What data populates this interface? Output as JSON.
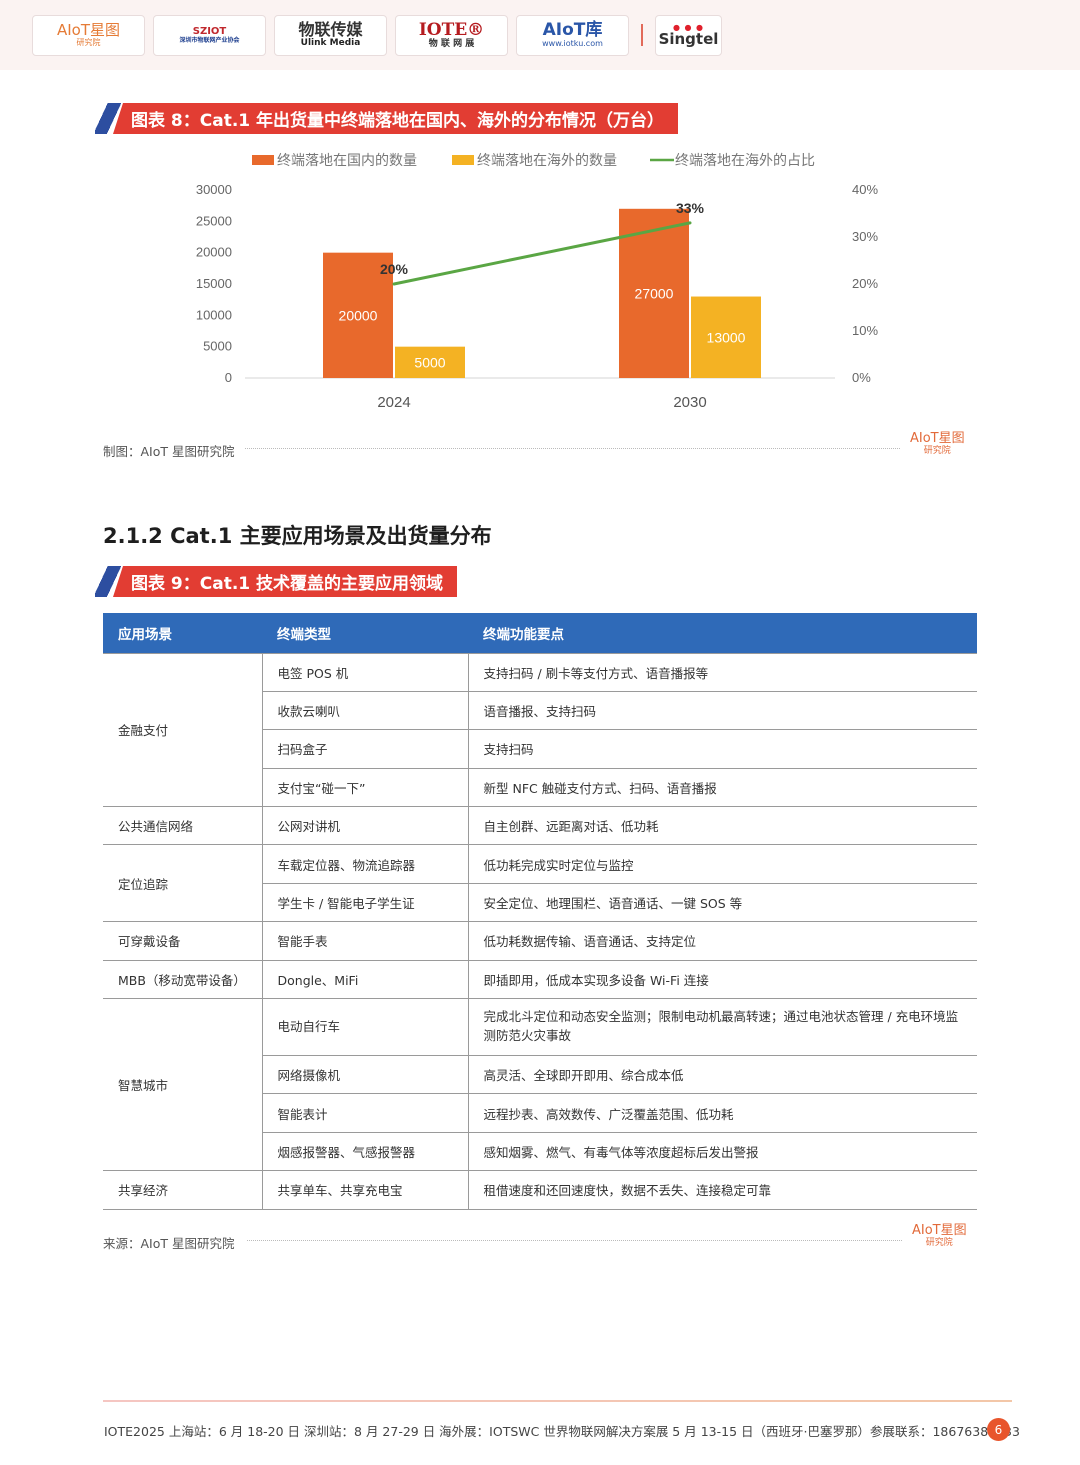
{
  "header": {
    "logos": [
      {
        "main": "AIoT星图",
        "sub": "研究院",
        "color": "#e57b36"
      },
      {
        "main": "SZIOT",
        "sub": "深圳市物联网产业协会",
        "color": "#c0282d"
      },
      {
        "main": "物联传媒",
        "sub": "Ulink Media",
        "color": "#222222"
      },
      {
        "main": "IOTE®",
        "sub": "物 联 网 展",
        "color": "#b51b1f"
      },
      {
        "main": "AIoT库",
        "sub": "www.iotku.com",
        "color": "#2a56a8"
      },
      {
        "main": "Singtel",
        "sub": "",
        "color": "#333333"
      }
    ]
  },
  "figure8": {
    "banner": "图表 8：Cat.1 年出货量中终端落地在国内、海外的分布情况（万台）",
    "source": "制图：AIoT 星图研究院",
    "logo_main": "AIoT星图",
    "logo_sub": "研究院"
  },
  "section": {
    "title": "2.1.2 Cat.1 主要应用场景及出货量分布"
  },
  "figure9": {
    "banner": "图表 9：Cat.1 技术覆盖的主要应用领域",
    "headers": [
      "应用场景",
      "终端类型",
      "终端功能要点"
    ],
    "rows": [
      {
        "scene": "金融支付",
        "span": 4,
        "type": "电签 POS 机",
        "feature": "支持扫码 / 刷卡等支付方式、语音播报等"
      },
      {
        "type": "收款云喇叭",
        "feature": "语音播报、支持扫码"
      },
      {
        "type": "扫码盒子",
        "feature": "支持扫码"
      },
      {
        "type": "支付宝“碰一下”",
        "feature": "新型 NFC 触碰支付方式、扫码、语音播报"
      },
      {
        "scene": "公共通信网络",
        "span": 1,
        "type": "公网对讲机",
        "feature": "自主创群、远距离对话、低功耗"
      },
      {
        "scene": "定位追踪",
        "span": 2,
        "type": "车载定位器、物流追踪器",
        "feature": "低功耗完成实时定位与监控"
      },
      {
        "type": "学生卡 / 智能电子学生证",
        "feature": "安全定位、地理围栏、语音通话、一键 SOS 等"
      },
      {
        "scene": "可穿戴设备",
        "span": 1,
        "type": "智能手表",
        "feature": "低功耗数据传输、语音通话、支持定位"
      },
      {
        "scene": "MBB（移动宽带设备）",
        "span": 1,
        "type": "Dongle、MiFi",
        "feature": "即插即用，低成本实现多设备 Wi-Fi 连接"
      },
      {
        "scene": "智慧城市",
        "span": 4,
        "type": "电动自行车",
        "feature": "完成北斗定位和动态安全监测；限制电动机最高转速；通过电池状态管理 / 充电环境监测防范火灾事故",
        "tall": true
      },
      {
        "type": "网络摄像机",
        "feature": "高灵活、全球即开即用、综合成本低"
      },
      {
        "type": "智能表计",
        "feature": "远程抄表、高效数传、广泛覆盖范围、低功耗"
      },
      {
        "type": "烟感报警器、气感报警器",
        "feature": "感知烟雾、燃气、有毒气体等浓度超标后发出警报"
      },
      {
        "scene": "共享经济",
        "span": 1,
        "type": "共享单车、共享充电宝",
        "feature": "租借速度和还回速度快，数据不丢失、连接稳定可靠"
      }
    ],
    "source": "来源：AIoT 星图研究院",
    "logo_main": "AIoT星图",
    "logo_sub": "研究院"
  },
  "footer": {
    "text": "IOTE2025 上海站：6 月 18-20 日  深圳站：8 月 27-29 日  海外展：IOTSWC 世界物联网解决方案展  5 月 13-15 日（西班牙·巴塞罗那）参展联系：18676385933",
    "page": "6"
  },
  "chart_data": {
    "type": "bar",
    "categories": [
      "2024",
      "2030"
    ],
    "series": [
      {
        "name": "终端落地在国内的数量",
        "values": [
          20000,
          27000
        ],
        "color": "#e8692c",
        "axis": "left"
      },
      {
        "name": "终端落地在海外的数量",
        "values": [
          5000,
          13000
        ],
        "color": "#f4b223",
        "axis": "left"
      },
      {
        "name": "终端落地在海外的占比",
        "type": "line",
        "values": [
          20,
          33
        ],
        "labels": [
          "20%",
          "33%"
        ],
        "color": "#5aa644",
        "axis": "right"
      }
    ],
    "ylim": [
      0,
      30000
    ],
    "yticks": [
      "0",
      "5000",
      "10000",
      "15000",
      "20000",
      "25000",
      "30000"
    ],
    "y2lim": [
      0,
      40
    ],
    "y2ticks": [
      "0%",
      "10%",
      "20%",
      "30%",
      "40%"
    ],
    "legend": "top",
    "grid": false
  }
}
